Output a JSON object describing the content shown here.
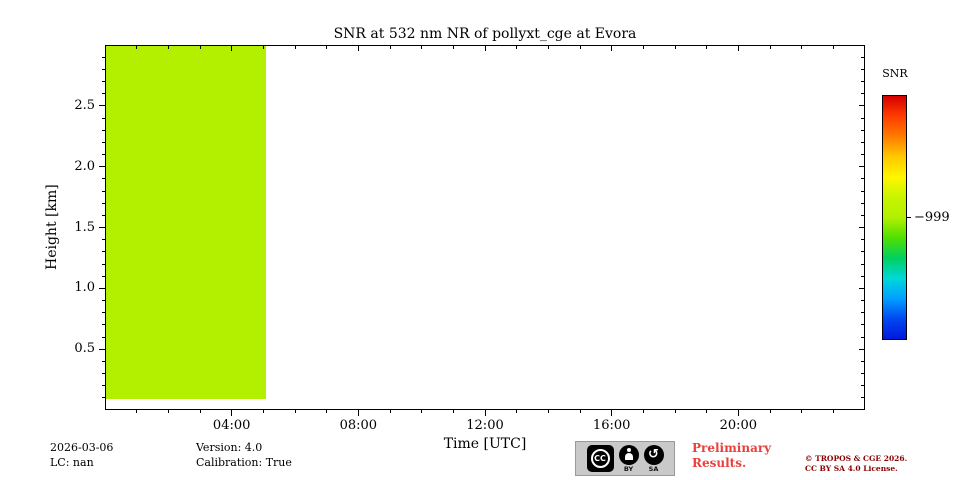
{
  "figure": {
    "background": "#ffffff"
  },
  "chart_data": {
    "type": "heatmap",
    "title": "SNR at 532 nm NR of pollyxt_cge at Evora",
    "xlabel": "Time [UTC]",
    "ylabel": "Height [km]",
    "xlim_hours": [
      0,
      24
    ],
    "ylim_km": [
      0,
      3
    ],
    "x_major_ticks": [
      {
        "hour": 4,
        "label": "04:00"
      },
      {
        "hour": 8,
        "label": "08:00"
      },
      {
        "hour": 12,
        "label": "12:00"
      },
      {
        "hour": 16,
        "label": "16:00"
      },
      {
        "hour": 20,
        "label": "20:00"
      }
    ],
    "x_minor_tick_every_hours": 1,
    "y_major_ticks": [
      {
        "km": 0.5,
        "label": "0.5"
      },
      {
        "km": 1.0,
        "label": "1.0"
      },
      {
        "km": 1.5,
        "label": "1.5"
      },
      {
        "km": 2.0,
        "label": "2.0"
      },
      {
        "km": 2.5,
        "label": "2.5"
      }
    ],
    "y_minor_tick_every_km": 0.1,
    "grid": false,
    "legend": "none",
    "regions": [
      {
        "name": "snr-fill-region",
        "x_start_hour": 0,
        "x_end_hour": 5.05,
        "y_bottom_km": 0.1,
        "y_top_km": 3.0,
        "value": -999,
        "color": "#b2f000"
      }
    ],
    "colorbar": {
      "label": "SNR",
      "ticks": [
        {
          "frac": 0.5,
          "label": "−999"
        }
      ],
      "colors_top_to_bottom": [
        "#d40000",
        "#ff3c00",
        "#ff7c00",
        "#ffc800",
        "#fff600",
        "#c8f400",
        "#b2f000",
        "#50e000",
        "#00d060",
        "#00d8d8",
        "#00a0ff",
        "#0048f0",
        "#0018dd"
      ]
    }
  },
  "footer": {
    "date": "2026-03-06",
    "lc": "LC: nan",
    "version": "Version: 4.0",
    "calibration": "Calibration: True",
    "license_badge": {
      "cc": "CC",
      "by": "BY",
      "sa": "SA",
      "sa_arrow_glyph": "↺"
    },
    "preliminary": {
      "line1": "Preliminary",
      "line2": "Results.",
      "color": "#e8413c"
    },
    "copyright": {
      "line1": "© TROPOS & CGE 2026.",
      "line2": "CC BY SA 4.0 License.",
      "color": "#8b0000"
    }
  }
}
